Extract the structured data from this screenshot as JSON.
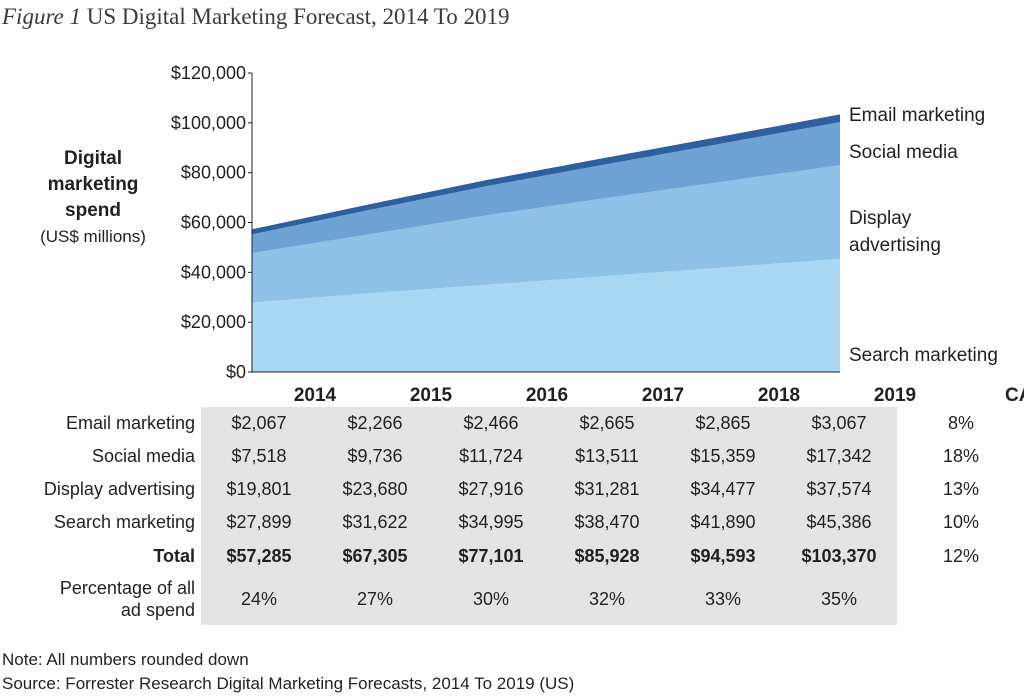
{
  "figure": {
    "label": "Figure 1",
    "title": "US Digital Marketing Forecast, 2014 To 2019"
  },
  "chart_data": {
    "type": "area",
    "stacked": true,
    "title": "Figure 1 US Digital Marketing Forecast, 2014 To 2019",
    "ylabel_lines": [
      "Digital",
      "marketing",
      "spend",
      "(US$ millions)"
    ],
    "ylim": [
      0,
      120000
    ],
    "yticks": [
      0,
      20000,
      40000,
      60000,
      80000,
      100000,
      120000
    ],
    "ytick_labels": [
      "$0",
      "$20,000",
      "$40,000",
      "$60,000",
      "$80,000",
      "$100,000",
      "$120,000"
    ],
    "categories": [
      "2014",
      "2015",
      "2016",
      "2017",
      "2018",
      "2019"
    ],
    "series": [
      {
        "name": "Search marketing",
        "color": "#aad8f3",
        "values": [
          27899,
          31622,
          34995,
          38470,
          41890,
          45386
        ]
      },
      {
        "name": "Display advertising",
        "color": "#8ec3e7",
        "values": [
          19801,
          23680,
          27916,
          31281,
          34477,
          37574
        ]
      },
      {
        "name": "Social media",
        "color": "#6ea4d5",
        "values": [
          7518,
          9736,
          11724,
          13511,
          15359,
          17342
        ]
      },
      {
        "name": "Email marketing",
        "color": "#2f5f9e",
        "values": [
          2067,
          2266,
          2466,
          2665,
          2865,
          3067
        ]
      }
    ],
    "legend_labels": [
      {
        "series": "Email marketing",
        "lines": [
          "Email marketing"
        ]
      },
      {
        "series": "Social media",
        "lines": [
          "Social media"
        ]
      },
      {
        "series": "Display advertising",
        "lines": [
          "Display",
          "advertising"
        ]
      },
      {
        "series": "Search marketing",
        "lines": [
          "Search marketing"
        ]
      }
    ]
  },
  "table": {
    "cagr_header": "CAGR",
    "rows": [
      {
        "label": "Email marketing",
        "values": [
          "$2,067",
          "$2,266",
          "$2,466",
          "$2,665",
          "$2,865",
          "$3,067"
        ],
        "cagr": "8%"
      },
      {
        "label": "Social media",
        "values": [
          "$7,518",
          "$9,736",
          "$11,724",
          "$13,511",
          "$15,359",
          "$17,342"
        ],
        "cagr": "18%"
      },
      {
        "label": "Display advertising",
        "values": [
          "$19,801",
          "$23,680",
          "$27,916",
          "$31,281",
          "$34,477",
          "$37,574"
        ],
        "cagr": "13%"
      },
      {
        "label": "Search marketing",
        "values": [
          "$27,899",
          "$31,622",
          "$34,995",
          "$38,470",
          "$41,890",
          "$45,386"
        ],
        "cagr": "10%"
      }
    ],
    "total": {
      "label": "Total",
      "values": [
        "$57,285",
        "$67,305",
        "$77,101",
        "$85,928",
        "$94,593",
        "$103,370"
      ],
      "cagr": "12%"
    },
    "percentage": {
      "label_lines": [
        "Percentage of all",
        "ad spend"
      ],
      "values": [
        "24%",
        "27%",
        "30%",
        "32%",
        "33%",
        "35%"
      ]
    }
  },
  "notes": {
    "note": "Note: All numbers rounded down",
    "source": "Source: Forrester Research Digital Marketing Forecasts, 2014 To 2019 (US)"
  }
}
